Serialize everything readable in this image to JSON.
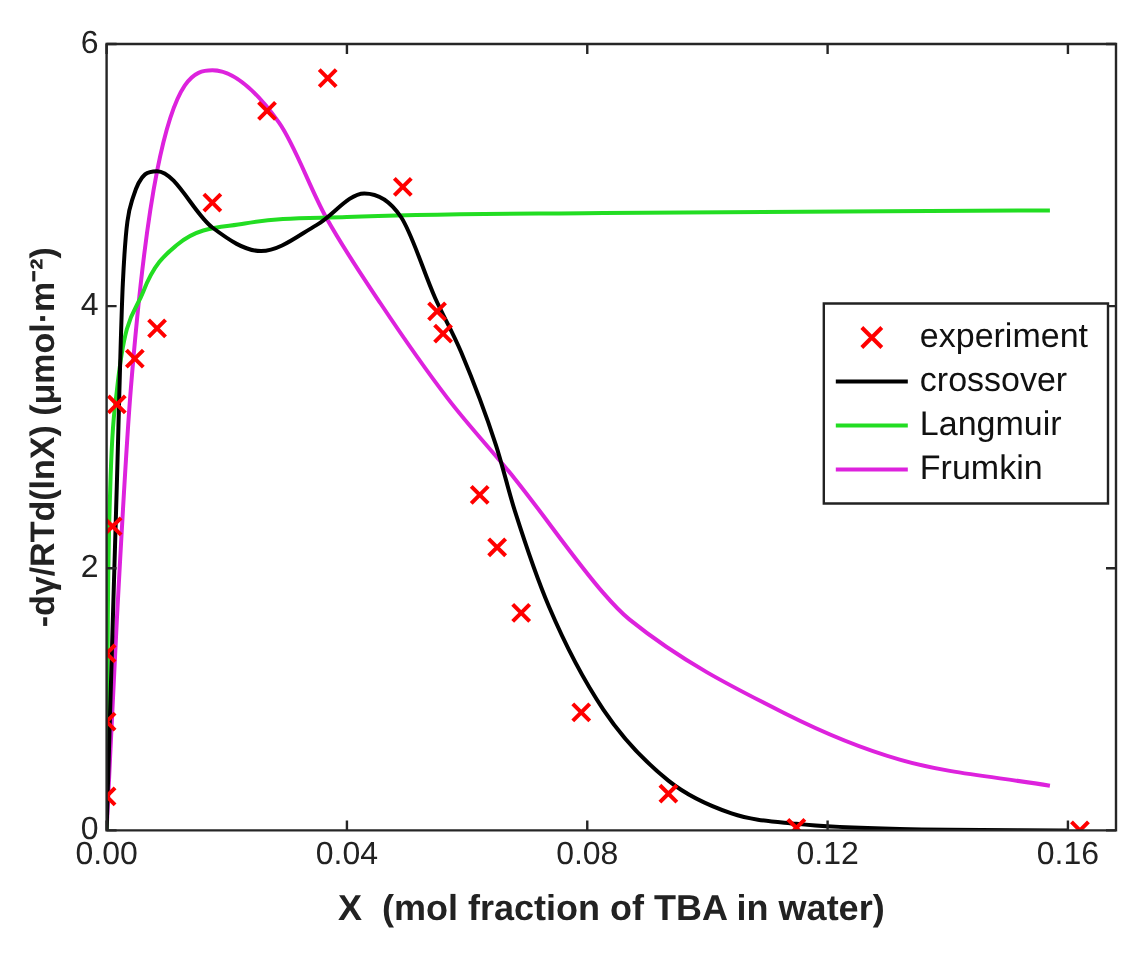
{
  "chart_data": {
    "type": "line",
    "xlabel": "X  (mol fraction of TBA in water)",
    "ylabel": "-dγ/RTd(lnX) (μmol·m⁻²)",
    "xlim": [
      0,
      0.168
    ],
    "xticks": [
      {
        "value": 0,
        "label": "0.00"
      },
      {
        "value": 0.04,
        "label": "0.04"
      },
      {
        "value": 0.08,
        "label": "0.08"
      },
      {
        "value": 0.12,
        "label": "0.12"
      },
      {
        "value": 0.16,
        "label": "0.16"
      }
    ],
    "ylim": [
      0,
      6
    ],
    "yticks": [
      0,
      2,
      4,
      6
    ],
    "grid": false,
    "legend": "right",
    "series": [
      {
        "name": "experiment",
        "type": "scatter",
        "marker": "cross",
        "color": "#ff0000",
        "x": [
          0,
          0,
          0,
          0.001,
          0.0017,
          0.0047,
          0.0084,
          0.0176,
          0.0267,
          0.0368,
          0.0493,
          0.055,
          0.056,
          0.0621,
          0.065,
          0.069,
          0.079,
          0.0935,
          0.1148,
          0.162
        ],
        "values": [
          0.26,
          0.83,
          1.35,
          2.32,
          3.25,
          3.6,
          3.83,
          4.79,
          5.49,
          5.74,
          4.91,
          3.96,
          3.79,
          2.56,
          2.16,
          1.66,
          0.9,
          0.28,
          0.02,
          0
        ]
      },
      {
        "name": "crossover",
        "color": "#000000",
        "x": [
          0,
          0.0017,
          0.0027,
          0.0044,
          0.0084,
          0.0176,
          0.0257,
          0.035,
          0.0429,
          0.049,
          0.0547,
          0.059,
          0.0648,
          0.068,
          0.0736,
          0.0827,
          0.0935,
          0.104,
          0.1148,
          0.132,
          0.16
        ],
        "values": [
          0,
          2.63,
          4.17,
          4.83,
          5.03,
          4.6,
          4.42,
          4.62,
          4.86,
          4.68,
          4.06,
          3.65,
          2.94,
          2.43,
          1.71,
          0.92,
          0.38,
          0.13,
          0.05,
          0.01,
          0
        ]
      },
      {
        "name": "Langmuir",
        "color": "#22dd22",
        "x": [
          0,
          0.0002,
          0.0006,
          0.0017,
          0.0061,
          0.0118,
          0.023,
          0.04,
          0.0827,
          0.157
        ],
        "values": [
          0,
          1.6,
          2.6,
          3.35,
          4.11,
          4.47,
          4.63,
          4.68,
          4.71,
          4.73
        ]
      },
      {
        "name": "Frumkin",
        "color": "#dd22dd",
        "x": [
          0,
          0.0017,
          0.004,
          0.0084,
          0.0176,
          0.0287,
          0.0365,
          0.0456,
          0.0567,
          0.068,
          0.0827,
          0.087,
          0.113,
          0.132,
          0.157
        ],
        "values": [
          0,
          1.6,
          3.35,
          5.03,
          5.8,
          5.4,
          4.68,
          4.02,
          3.3,
          2.68,
          1.81,
          1.61,
          0.89,
          0.54,
          0.34
        ]
      }
    ]
  }
}
